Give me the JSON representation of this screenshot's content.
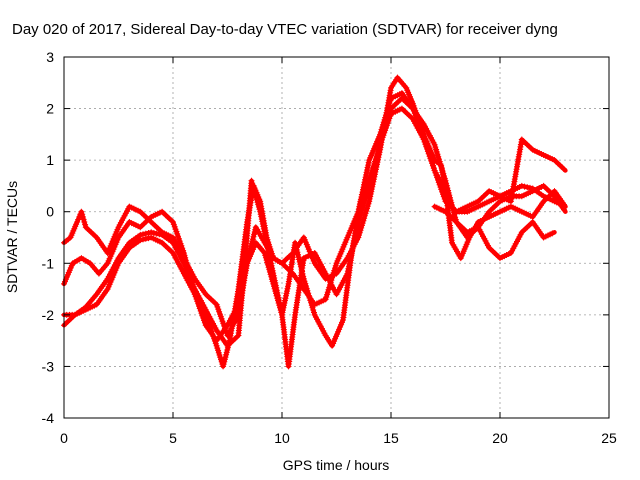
{
  "chart_data": {
    "type": "scatter",
    "title": "Day 020 of 2017, Sidereal Day-to-day VTEC variation (SDTVAR) for receiver dyng",
    "xlabel": "GPS time / hours",
    "ylabel": "SDTVAR / TECUs",
    "xlim": [
      0,
      25
    ],
    "ylim": [
      -4,
      3
    ],
    "xticks": [
      0,
      5,
      10,
      15,
      20,
      25
    ],
    "yticks": [
      -4,
      -3,
      -2,
      -1,
      0,
      1,
      2,
      3
    ],
    "xtick_labels": [
      "0",
      "5",
      "10",
      "15",
      "20",
      "25"
    ],
    "ytick_labels": [
      "-4",
      "-3",
      "-2",
      "-1",
      "0",
      "1",
      "2",
      "3"
    ],
    "grid": true,
    "marker": "+",
    "color": "#ff0000",
    "series": [
      {
        "points": [
          [
            0.0,
            -2.0
          ],
          [
            0.5,
            -2.0
          ],
          [
            1.0,
            -1.9
          ],
          [
            1.5,
            -1.8
          ],
          [
            2.0,
            -1.5
          ],
          [
            2.5,
            -1.0
          ],
          [
            3.0,
            -0.7
          ],
          [
            3.5,
            -0.55
          ],
          [
            4.0,
            -0.5
          ],
          [
            4.5,
            -0.6
          ],
          [
            5.0,
            -0.8
          ],
          [
            5.5,
            -1.2
          ],
          [
            6.0,
            -1.6
          ],
          [
            6.5,
            -2.0
          ],
          [
            7.0,
            -2.6
          ],
          [
            7.3,
            -3.0
          ],
          [
            7.6,
            -2.5
          ],
          [
            8.0,
            -1.5
          ],
          [
            8.4,
            -0.2
          ],
          [
            8.7,
            0.5
          ],
          [
            9.0,
            0.2
          ],
          [
            9.3,
            -0.5
          ],
          [
            9.6,
            -0.9
          ],
          [
            10.0,
            -1.0
          ],
          [
            10.5,
            -1.2
          ],
          [
            11.0,
            -1.5
          ],
          [
            11.5,
            -1.8
          ],
          [
            12.0,
            -1.7
          ],
          [
            12.5,
            -1.0
          ],
          [
            13.0,
            -0.5
          ],
          [
            13.5,
            0.0
          ],
          [
            14.0,
            1.0
          ],
          [
            14.5,
            1.5
          ],
          [
            15.0,
            2.2
          ],
          [
            15.5,
            2.3
          ],
          [
            16.0,
            2.0
          ],
          [
            16.5,
            1.5
          ],
          [
            17.0,
            0.8
          ],
          [
            17.5,
            0.2
          ],
          [
            18.0,
            0.0
          ],
          [
            18.5,
            0.0
          ],
          [
            19.0,
            0.1
          ],
          [
            19.5,
            0.2
          ],
          [
            20.0,
            0.3
          ],
          [
            20.5,
            0.4
          ],
          [
            21.0,
            0.5
          ],
          [
            21.5,
            0.45
          ],
          [
            22.0,
            0.3
          ],
          [
            22.5,
            0.2
          ],
          [
            23.0,
            0.1
          ]
        ]
      },
      {
        "points": [
          [
            0.0,
            -2.2
          ],
          [
            0.5,
            -2.0
          ],
          [
            1.0,
            -1.85
          ],
          [
            1.5,
            -1.6
          ],
          [
            2.0,
            -1.3
          ],
          [
            2.5,
            -0.9
          ],
          [
            3.0,
            -0.6
          ],
          [
            3.5,
            -0.45
          ],
          [
            4.0,
            -0.4
          ],
          [
            4.5,
            -0.45
          ],
          [
            5.0,
            -0.6
          ],
          [
            5.5,
            -1.0
          ],
          [
            6.0,
            -1.5
          ],
          [
            6.5,
            -1.9
          ],
          [
            7.0,
            -2.3
          ],
          [
            7.5,
            -2.6
          ],
          [
            8.0,
            -2.4
          ],
          [
            8.3,
            -1.0
          ],
          [
            8.6,
            0.6
          ],
          [
            9.0,
            0.0
          ],
          [
            9.5,
            -1.0
          ],
          [
            10.0,
            -2.0
          ],
          [
            10.3,
            -3.0
          ],
          [
            10.6,
            -2.0
          ],
          [
            11.0,
            -0.9
          ],
          [
            11.5,
            -0.8
          ],
          [
            12.0,
            -1.2
          ],
          [
            12.5,
            -1.6
          ],
          [
            13.0,
            -1.2
          ],
          [
            13.5,
            -0.2
          ],
          [
            14.0,
            0.5
          ],
          [
            14.5,
            1.3
          ],
          [
            15.0,
            2.0
          ],
          [
            15.5,
            2.2
          ],
          [
            16.0,
            2.0
          ],
          [
            16.5,
            1.7
          ],
          [
            17.0,
            1.3
          ],
          [
            17.5,
            0.6
          ],
          [
            18.0,
            -0.2
          ],
          [
            18.5,
            -0.5
          ],
          [
            19.0,
            -0.3
          ],
          [
            19.5,
            0.0
          ],
          [
            20.0,
            0.2
          ],
          [
            20.5,
            0.3
          ],
          [
            21.0,
            0.3
          ],
          [
            21.5,
            0.4
          ],
          [
            22.0,
            0.5
          ],
          [
            22.5,
            0.3
          ],
          [
            23.0,
            0.0
          ]
        ]
      },
      {
        "points": [
          [
            0.0,
            -1.4
          ],
          [
            0.4,
            -1.0
          ],
          [
            0.8,
            -0.9
          ],
          [
            1.2,
            -1.0
          ],
          [
            1.6,
            -1.2
          ],
          [
            2.0,
            -1.0
          ],
          [
            2.5,
            -0.5
          ],
          [
            3.0,
            -0.2
          ],
          [
            3.5,
            -0.3
          ],
          [
            4.0,
            -0.1
          ],
          [
            4.5,
            0.0
          ],
          [
            5.0,
            -0.2
          ],
          [
            5.5,
            -0.8
          ],
          [
            6.0,
            -1.6
          ],
          [
            6.5,
            -2.2
          ],
          [
            7.0,
            -2.5
          ],
          [
            7.5,
            -2.2
          ],
          [
            8.0,
            -1.8
          ],
          [
            8.4,
            -1.0
          ],
          [
            8.8,
            -0.6
          ],
          [
            9.2,
            -0.8
          ],
          [
            9.6,
            -1.4
          ],
          [
            10.0,
            -2.0
          ],
          [
            10.3,
            -1.4
          ],
          [
            10.6,
            -0.6
          ],
          [
            11.0,
            -1.3
          ],
          [
            11.5,
            -2.0
          ],
          [
            12.0,
            -2.4
          ],
          [
            12.3,
            -2.6
          ],
          [
            12.8,
            -2.1
          ],
          [
            13.2,
            -0.8
          ],
          [
            13.6,
            0.2
          ],
          [
            14.0,
            0.6
          ],
          [
            14.5,
            1.3
          ],
          [
            15.0,
            1.9
          ],
          [
            15.5,
            2.0
          ],
          [
            16.0,
            1.8
          ],
          [
            16.5,
            1.4
          ],
          [
            17.0,
            0.8
          ],
          [
            17.5,
            0.4
          ],
          [
            17.8,
            -0.6
          ],
          [
            18.2,
            -0.9
          ],
          [
            18.6,
            -0.5
          ],
          [
            19.0,
            -0.2
          ],
          [
            19.5,
            -0.1
          ],
          [
            20.0,
            0.0
          ],
          [
            20.5,
            0.1
          ],
          [
            21.0,
            0.0
          ],
          [
            21.5,
            -0.1
          ],
          [
            22.0,
            0.2
          ],
          [
            22.5,
            0.4
          ],
          [
            23.0,
            0.1
          ]
        ]
      },
      {
        "points": [
          [
            0.0,
            -0.6
          ],
          [
            0.3,
            -0.5
          ],
          [
            0.6,
            -0.2
          ],
          [
            0.8,
            0.0
          ],
          [
            1.0,
            -0.3
          ],
          [
            1.5,
            -0.5
          ],
          [
            2.0,
            -0.8
          ],
          [
            2.5,
            -0.3
          ],
          [
            3.0,
            0.1
          ],
          [
            3.5,
            0.0
          ],
          [
            4.0,
            -0.2
          ],
          [
            4.5,
            -0.4
          ],
          [
            5.0,
            -0.5
          ],
          [
            5.5,
            -0.9
          ],
          [
            6.0,
            -1.3
          ],
          [
            6.5,
            -1.6
          ],
          [
            7.0,
            -1.8
          ],
          [
            7.5,
            -2.4
          ],
          [
            8.0,
            -2.0
          ],
          [
            8.4,
            -1.0
          ],
          [
            8.8,
            -0.3
          ],
          [
            9.2,
            -0.6
          ],
          [
            9.6,
            -0.9
          ],
          [
            10.0,
            -1.0
          ],
          [
            10.5,
            -0.8
          ],
          [
            11.0,
            -0.5
          ],
          [
            11.5,
            -1.0
          ],
          [
            12.0,
            -1.3
          ],
          [
            12.5,
            -1.2
          ],
          [
            13.0,
            -0.9
          ],
          [
            13.5,
            -0.5
          ],
          [
            14.0,
            0.2
          ],
          [
            14.5,
            1.2
          ],
          [
            15.0,
            2.4
          ],
          [
            15.3,
            2.6
          ],
          [
            15.7,
            2.4
          ],
          [
            16.0,
            2.1
          ],
          [
            16.5,
            1.5
          ],
          [
            17.0,
            1.0
          ],
          [
            17.3,
            0.9
          ],
          [
            17.6,
            0.2
          ],
          [
            18.0,
            0.0
          ],
          [
            18.5,
            0.1
          ],
          [
            19.0,
            0.2
          ],
          [
            19.5,
            0.4
          ],
          [
            20.0,
            0.3
          ],
          [
            20.5,
            0.2
          ],
          [
            21.0,
            1.4
          ],
          [
            21.5,
            1.2
          ],
          [
            22.0,
            1.1
          ],
          [
            22.5,
            1.0
          ],
          [
            23.0,
            0.8
          ]
        ]
      },
      {
        "points": [
          [
            17.0,
            0.1
          ],
          [
            17.5,
            0.0
          ],
          [
            18.0,
            -0.2
          ],
          [
            18.5,
            -0.4
          ],
          [
            19.0,
            -0.3
          ],
          [
            19.5,
            -0.7
          ],
          [
            20.0,
            -0.9
          ],
          [
            20.5,
            -0.8
          ],
          [
            21.0,
            -0.4
          ],
          [
            21.5,
            -0.2
          ],
          [
            22.0,
            -0.5
          ],
          [
            22.5,
            -0.4
          ]
        ]
      }
    ]
  }
}
